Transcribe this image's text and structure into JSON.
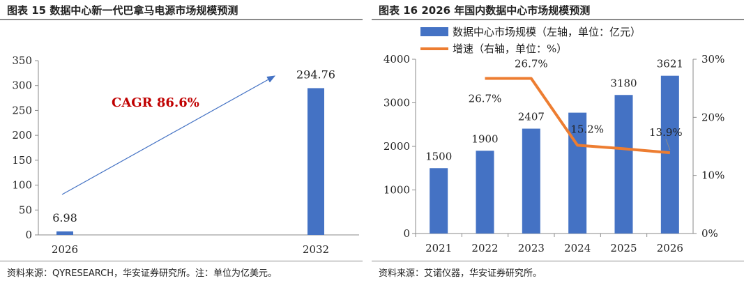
{
  "colors": {
    "bar": "#4472c4",
    "line": "#ed7d31",
    "cagr": "#c00000",
    "axis": "#8a8a8a"
  },
  "chart_data": [
    {
      "type": "bar",
      "title": "图表 15 数据中心新一代巴拿马电源市场规模预测",
      "source": "资料来源：QYRESEARCH，华安证券研究所。注：单位为亿美元。",
      "categories": [
        "2026",
        "2032"
      ],
      "values": [
        6.98,
        294.76
      ],
      "value_labels": [
        "6.98",
        "294.76"
      ],
      "ylim": [
        0,
        350
      ],
      "yticks": [
        0,
        50,
        100,
        150,
        200,
        250,
        300,
        350
      ],
      "annotation": "CAGR 86.6%",
      "grid": false
    },
    {
      "type": "bar+line",
      "title": "图表 16 2026 年国内数据中心市场规模预测",
      "source": "资料来源：艾诺仪器，华安证券研究所。",
      "categories": [
        "2021",
        "2022",
        "2023",
        "2024",
        "2025",
        "2026"
      ],
      "legend_position": "top",
      "legend": [
        "数据中心市场规模（左轴，单位：亿元）",
        "增速（右轴，单位：%）"
      ],
      "series": [
        {
          "name": "数据中心市场规模（左轴，单位：亿元）",
          "type": "bar",
          "axis": "left",
          "values": [
            1500,
            1900,
            2407,
            2774,
            3180,
            3621
          ],
          "labels": [
            "1500",
            "1900",
            "2407",
            "",
            "3180",
            "3621"
          ]
        },
        {
          "name": "增速（右轴，单位：%）",
          "type": "line",
          "axis": "right",
          "x": [
            "2022",
            "2023",
            "2024",
            "2025",
            "2026"
          ],
          "values": [
            26.7,
            26.7,
            15.2,
            14.6,
            13.9
          ],
          "labels": [
            "26.7%",
            "26.7%",
            "15.2%",
            "",
            "13.9%"
          ]
        }
      ],
      "y_left": {
        "lim": [
          0,
          4000
        ],
        "ticks": [
          0,
          1000,
          2000,
          3000,
          4000
        ]
      },
      "y_right": {
        "lim": [
          0,
          30
        ],
        "ticks": [
          "0%",
          "10%",
          "20%",
          "30%"
        ]
      },
      "grid": false
    }
  ]
}
